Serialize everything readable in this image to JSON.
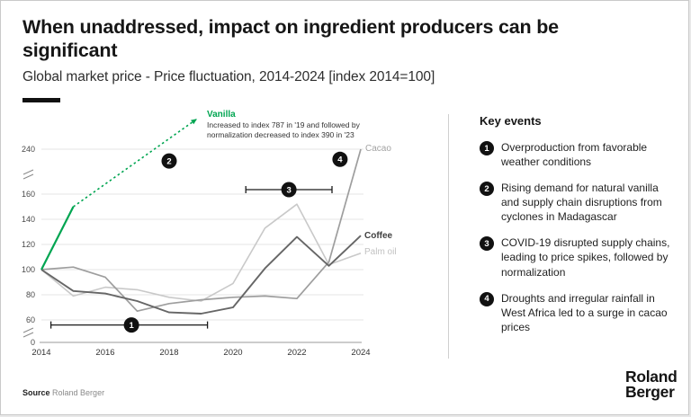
{
  "header": {
    "title": "When unaddressed, impact on ingredient producers can be significant",
    "subtitle": "Global market price - Price fluctuation, 2014-2024 [index 2014=100]"
  },
  "chart": {
    "series_labels": {
      "cacao": "Cacao",
      "coffee": "Coffee",
      "palm_oil": "Palm oil"
    },
    "vanilla_annotation": {
      "label": "Vanilla",
      "note_line1": "Increased to index 787 in '19 and followed by",
      "note_line2": "normalization decreased to index 390 in '23"
    }
  },
  "chart_data": {
    "type": "line",
    "title": "Global market price - Price fluctuation, 2014-2024 [index 2014=100]",
    "x": [
      2014,
      2015,
      2016,
      2017,
      2018,
      2019,
      2020,
      2021,
      2022,
      2023,
      2024
    ],
    "x_ticks": [
      2014,
      2016,
      2018,
      2020,
      2022,
      2024
    ],
    "y_axis": {
      "ticks": [
        240,
        160,
        140,
        120,
        100,
        80,
        60,
        0
      ],
      "broken_axis": true,
      "breaks": [
        [
          160,
          240
        ],
        [
          0,
          60
        ]
      ]
    },
    "series": [
      {
        "name": "Vanilla",
        "color": "#00A551",
        "solid_points": {
          "x": [
            2014,
            2015
          ],
          "y": [
            100,
            150
          ]
        },
        "dashed_to": {
          "x": 2018.87,
          "y_visual": 294
        },
        "note": "Increased to index 787 in '19 and followed by normalization decreased to index 390 in '23"
      },
      {
        "name": "Cacao",
        "color": "#9E9E9E",
        "values": [
          100,
          102,
          94,
          67,
          73,
          76,
          78,
          79,
          77,
          106,
          240
        ]
      },
      {
        "name": "Coffee",
        "color": "#666666",
        "values": [
          100,
          83,
          81,
          75,
          66,
          65,
          70,
          101,
          126,
          103,
          127
        ]
      },
      {
        "name": "Palm oil",
        "color": "#C9C9C9",
        "values": [
          100,
          79,
          86,
          84,
          78,
          75,
          89,
          133,
          152,
          104,
          113
        ]
      }
    ],
    "annotations": [
      {
        "number": "1",
        "type": "span",
        "from_x": 2014.3,
        "to_x": 2019.2,
        "y": 56,
        "circle_x": 2016.82
      },
      {
        "number": "2",
        "type": "circle",
        "x": 2018.0,
        "y_visual": 219
      },
      {
        "number": "3",
        "type": "span",
        "from_x": 2020.4,
        "to_x": 2023.1,
        "y": 168,
        "circle_x": 2021.75
      },
      {
        "number": "4",
        "type": "circle",
        "x": 2023.35,
        "y_visual": 222
      }
    ]
  },
  "key_events": {
    "heading": "Key events",
    "items": [
      {
        "number": "1",
        "text": "Overproduction from favorable weather conditions"
      },
      {
        "number": "2",
        "text": "Rising demand for natural vanilla and supply chain disruptions from cyclones in Madagascar"
      },
      {
        "number": "3",
        "text": "COVID-19 disrupted supply chains, leading to price spikes, followed by normalization"
      },
      {
        "number": "4",
        "text": "Droughts and irregular rainfall in West Africa led to a surge in cacao prices"
      }
    ]
  },
  "footer": {
    "source_label": "Source",
    "source_value": "Roland Berger",
    "logo_line1": "Roland",
    "logo_line2": "Berger"
  },
  "colors": {
    "accent_green": "#00A551",
    "marker_bg": "#111111",
    "grid": "#e4e4e4"
  }
}
